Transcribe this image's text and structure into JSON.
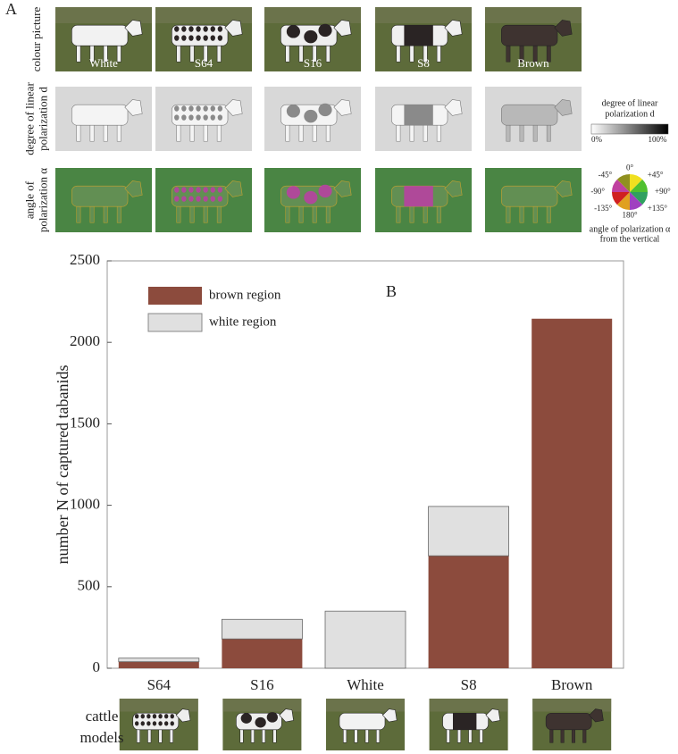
{
  "panel_a": {
    "letter": "A",
    "row_labels": [
      [
        "colour picture"
      ],
      [
        "degree of linear",
        "polarization d"
      ],
      [
        "angle of",
        "polarization α"
      ]
    ],
    "columns": [
      "White",
      "S64",
      "S16",
      "S8",
      "Brown"
    ],
    "dolp_legend": {
      "title": [
        "degree of linear",
        "polarization d"
      ],
      "min_label": "0%",
      "max_label": "100%"
    },
    "aop_legend": {
      "labels": [
        "0°",
        "+45°",
        "+90°",
        "+135°",
        "180°",
        "-135°",
        "-90°",
        "-45°"
      ],
      "caption": [
        "angle of polarization α",
        "from the vertical"
      ]
    }
  },
  "chart_data": {
    "type": "bar",
    "stacked": true,
    "letter": "B",
    "ylabel": "number N of captured tabanids",
    "categories": [
      "S64",
      "S16",
      "White",
      "S8",
      "Brown"
    ],
    "series": [
      {
        "name": "brown region",
        "color": "#8c4b3d",
        "values": [
          40,
          180,
          0,
          690,
          2145
        ]
      },
      {
        "name": "white region",
        "color": "#e0e0e0",
        "values": [
          22,
          120,
          350,
          303,
          0
        ]
      }
    ],
    "ylim": [
      0,
      2500
    ],
    "yticks": [
      0,
      500,
      1000,
      1500,
      2000,
      2500
    ],
    "grid": false
  },
  "models_label": [
    "cattle",
    "models"
  ]
}
